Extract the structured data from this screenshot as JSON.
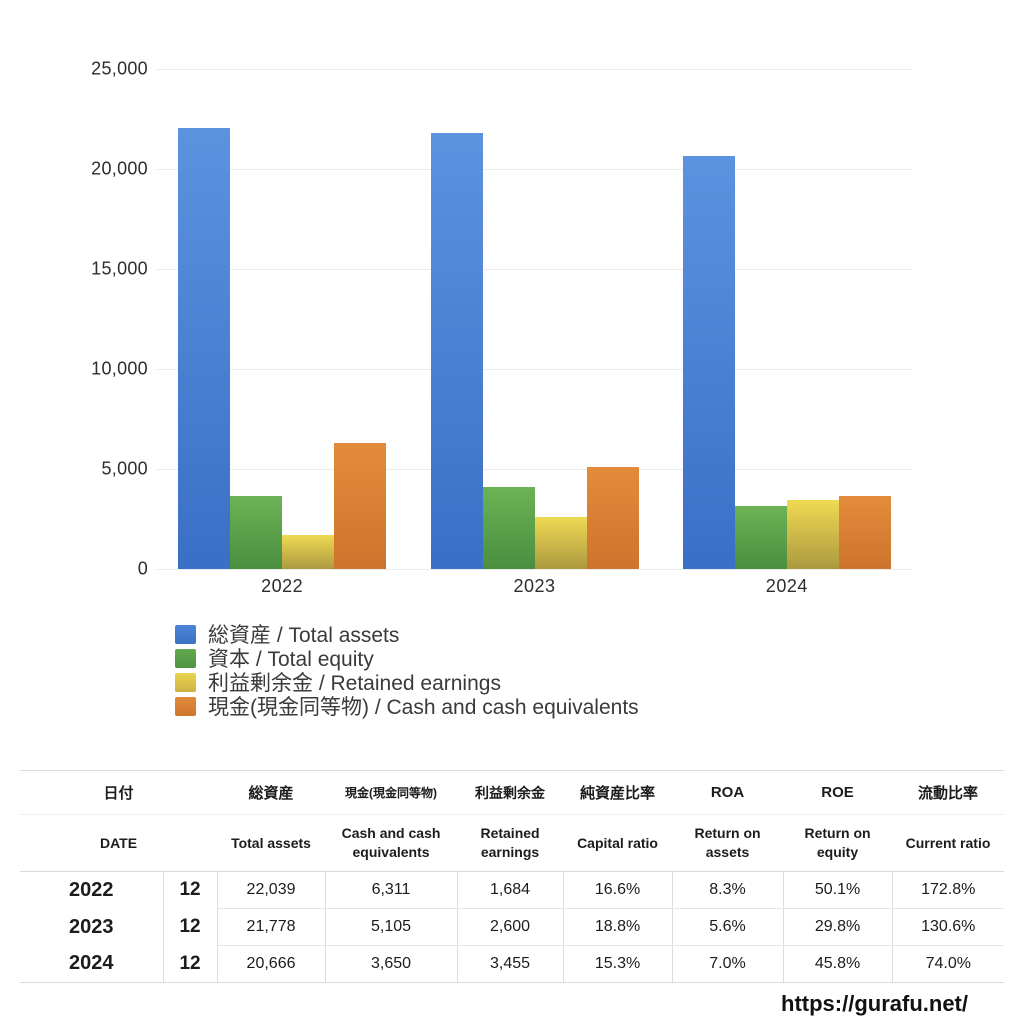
{
  "page": {
    "url_watermark": "https://gurafu.net/"
  },
  "chart_data": {
    "type": "bar",
    "title": "",
    "xlabel": "",
    "ylabel": "",
    "categories": [
      "2022",
      "2023",
      "2024"
    ],
    "series": [
      {
        "name": "総資産 / Total assets",
        "values": [
          22039,
          21778,
          20666
        ],
        "color_top": "#5C93DF",
        "color_bottom": "#3A6FC6",
        "legend_color_top": "#4B84D6",
        "legend_color_bottom": "#3D72C5"
      },
      {
        "name": "資本 / Total equity",
        "values": [
          3658,
          4094,
          3162
        ],
        "color_top": "#6CB356",
        "color_bottom": "#4A8E3F",
        "legend_color_top": "#63A94F",
        "legend_color_bottom": "#4E9342"
      },
      {
        "name": "利益剰余金 / Retained earnings",
        "values": [
          1684,
          2600,
          3455
        ],
        "color_top": "#EFDA52",
        "color_bottom": "#AC9940",
        "legend_color_top": "#E9D44F",
        "legend_color_bottom": "#CDB244"
      },
      {
        "name": "現金(現金同等物) / Cash and cash equivalents",
        "values": [
          6311,
          5105,
          3650
        ],
        "color_top": "#E28C3B",
        "color_bottom": "#CE732C",
        "legend_color_top": "#E08B3B",
        "legend_color_bottom": "#CE752E"
      }
    ],
    "ylim": [
      0,
      25000
    ],
    "yticks": [
      0,
      5000,
      10000,
      15000,
      20000,
      25000
    ],
    "ytick_labels": [
      "0",
      "5,000",
      "10,000",
      "15,000",
      "20,000",
      "25,000"
    ],
    "grid": true,
    "legend_position": "bottom-left"
  },
  "table": {
    "headers_jp": [
      "日付",
      "総資産",
      "現金(現金同等物)",
      "利益剰余金",
      "純資産比率",
      "ROA",
      "ROE",
      "流動比率"
    ],
    "headers_en": [
      "DATE",
      "Total assets",
      "Cash and cash equivalents",
      "Retained earnings",
      "Capital ratio",
      "Return on assets",
      "Return on equity",
      "Current ratio"
    ],
    "rows": [
      {
        "year": "2022",
        "month": "12",
        "values": [
          "22,039",
          "6,311",
          "1,684",
          "16.6%",
          "8.3%",
          "50.1%",
          "172.8%"
        ]
      },
      {
        "year": "2023",
        "month": "12",
        "values": [
          "21,778",
          "5,105",
          "2,600",
          "18.8%",
          "5.6%",
          "29.8%",
          "130.6%"
        ]
      },
      {
        "year": "2024",
        "month": "12",
        "values": [
          "20,666",
          "3,650",
          "3,455",
          "15.3%",
          "7.0%",
          "45.8%",
          "74.0%"
        ]
      }
    ]
  }
}
